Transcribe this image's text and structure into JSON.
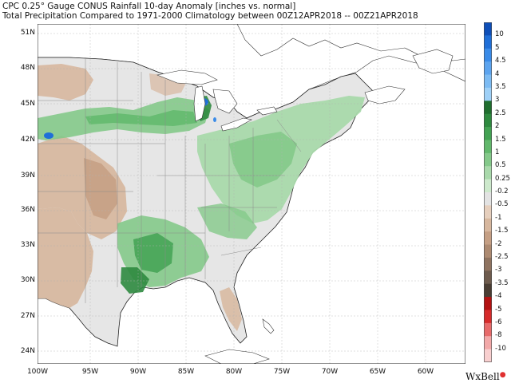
{
  "title_line1": "CPC 0.25° Gauge CONUS Rainfall 10-day Anomaly [inches vs. normal]",
  "title_line2": "Total Precipitation Compared to 1971-2000 Climatology between 00Z12APR2018 -- 00Z21APR2018",
  "lat_labels": [
    "51N",
    "48N",
    "45N",
    "42N",
    "39N",
    "36N",
    "33N",
    "30N",
    "27N",
    "24N"
  ],
  "lon_labels": [
    "100W",
    "95W",
    "90W",
    "85W",
    "80W",
    "75W",
    "70W",
    "65W",
    "60W"
  ],
  "colorbar": {
    "labels": [
      "10",
      "5",
      "4.5",
      "4",
      "3.5",
      "3",
      "2.5",
      "2",
      "1.5",
      "1",
      "0.5",
      "0.25",
      "-0.2",
      "-0.5",
      "-1",
      "-1.5",
      "-2",
      "-2.5",
      "-3",
      "-3.5",
      "-4",
      "-5",
      "-6",
      "-8",
      "-10"
    ],
    "colors": [
      "#0e4fb8",
      "#1f6fd8",
      "#3a8be8",
      "#5ca4ef",
      "#7cbbf3",
      "#9ed0f7",
      "#1f6e2e",
      "#2e8a3f",
      "#43a253",
      "#62b86c",
      "#84c98a",
      "#a9d9ab",
      "#cde9cc",
      "#e3e3e3",
      "#e6cfbd",
      "#d7b79e",
      "#c59f84",
      "#ad8a71",
      "#8f7360",
      "#6e5b4d",
      "#4a3d33",
      "#b31212",
      "#d62b2b",
      "#e76a6a",
      "#f2a8a8",
      "#f8cfcf"
    ]
  },
  "colors": {
    "ocean": "#ffffff",
    "neutral_land": "#e6e6e6",
    "dry": "#d7b79e",
    "dry_strong": "#c59f84",
    "wet": "#a9d9ab",
    "wet_mid": "#84c98a",
    "wet_strong": "#43a253",
    "wet_max": "#2e8a3f",
    "blue_spot": "#1f6fd8",
    "boundary": "#7f7f7f",
    "coast": "#222222"
  },
  "brand": "WxBell"
}
